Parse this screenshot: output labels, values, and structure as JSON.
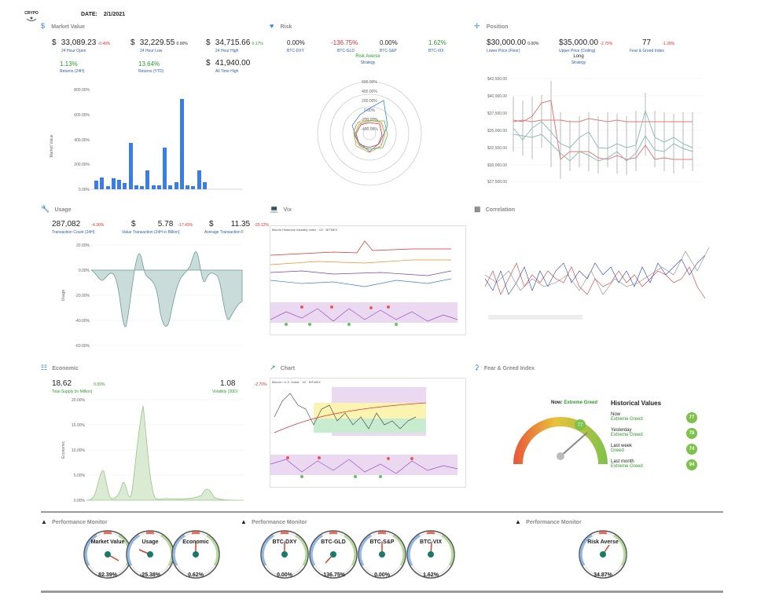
{
  "header": {
    "logo_text": "CRYPO",
    "date_label": "DATE:",
    "date_value": "2/1/2021"
  },
  "market_value": {
    "title": "Market Value",
    "stats": [
      {
        "prefix": "$",
        "value": "33,089.23",
        "change": "-0.49%",
        "label": "24 Hour Open",
        "color": "#d93030"
      },
      {
        "prefix": "$",
        "value": "32,229.55",
        "change": "0.00%",
        "label": "24 Hour Low",
        "color": "#222222"
      },
      {
        "prefix": "$",
        "value": "34,715.66",
        "change": "6.17%",
        "label": "24 Hour High",
        "color": "#2d9a2d"
      }
    ],
    "stats2": [
      {
        "value": "1.13%",
        "label": "Returns (24H)"
      },
      {
        "value": "13.64%",
        "label": "Returns (YTD)"
      },
      {
        "prefix": "$",
        "value": "41,940.00",
        "label": "All Time High"
      }
    ],
    "ylabel": "Market Value",
    "yticks": [
      "800.00%",
      "600.00%",
      "400.00%",
      "200.00%",
      "0.00%"
    ]
  },
  "risk": {
    "title": "Risk",
    "stats": [
      {
        "value": "0.00%",
        "label": "BTC-DXY",
        "color": "#222222"
      },
      {
        "value": "-136.75%",
        "label": "BTC-GLD",
        "color": "#d93030"
      },
      {
        "value": "0.00%",
        "label": "BTC-S&P",
        "color": "#222222"
      },
      {
        "value": "1.62%",
        "label": "BTC-VIX",
        "color": "#2d9a2d"
      }
    ],
    "strategy_value": "Risk Averse",
    "strategy_label": "Strategy",
    "radar_ticks": [
      "600.00%",
      "400.00%",
      "200.00%",
      "0.00%",
      "-200.00%",
      "-400.00%"
    ]
  },
  "position": {
    "title": "Position",
    "stats": [
      {
        "prefix": "$",
        "value": "30,000.00",
        "change": "0.00%",
        "label": "Lower Price (Floor)",
        "color": "#222222"
      },
      {
        "prefix": "$",
        "value": "35,000.00",
        "change": "-2.79%",
        "label": "Upper Price (Ceiling)",
        "color": "#d93030"
      },
      {
        "prefix": "",
        "value": "77",
        "change": "-1.28%",
        "label": "Fear & Greed Index",
        "color": "#d93030"
      }
    ],
    "strategy_value": "Long",
    "strategy_label": "Strategy",
    "yticks": [
      "$42,500.00",
      "$40,000.00",
      "$37,500.00",
      "$35,000.00",
      "$32,500.00",
      "$30,000.00",
      "$27,500.00"
    ]
  },
  "usage": {
    "title": "Usage",
    "stats": [
      {
        "prefix": "",
        "value": "287,082",
        "change": "-4.30%",
        "label": "Transaction Count (24H)"
      },
      {
        "prefix": "$",
        "value": "5.78",
        "change": "-17.43%",
        "label": "Value Transaction (24H in Billion)"
      },
      {
        "prefix": "$",
        "value": "11.35",
        "change": "-20.12%",
        "label": "Average Transaction Fee"
      }
    ],
    "ylabel": "Usage",
    "yticks": [
      "20.00%",
      "0.00%",
      "-20.00%",
      "-40.00%",
      "-60.00%"
    ]
  },
  "vix": {
    "title": "Vix",
    "chart_caption": "Bitcoin Historical Volatility Index · 1D · BITMEX"
  },
  "correlation": {
    "title": "Correlation"
  },
  "economic": {
    "title": "Economic",
    "stats": [
      {
        "value": "18.62",
        "change": "0.00%",
        "label": "Total Supply (in Million)"
      },
      {
        "value": "1.08",
        "change": "-2.70%",
        "label": "Volatility (30D)"
      }
    ],
    "ylabel": "Economic",
    "yticks": [
      "20.00%",
      "15.00%",
      "10.00%",
      "5.00%",
      "0.00%"
    ]
  },
  "chart": {
    "title": "Chart",
    "chart_caption": "Bitcoin / U.S. Dollar · 1D · BITMEX"
  },
  "fear_greed": {
    "title": "Fear & Greed Index",
    "now_label": "Now:",
    "now_value": "Extreme Greed",
    "gauge_value": "77",
    "historical_title": "Historical Values",
    "history": [
      {
        "period": "Now",
        "sentiment": "Extreme Greed",
        "value": "77"
      },
      {
        "period": "Yesterday",
        "sentiment": "Extreme Greed",
        "value": "78"
      },
      {
        "period": "Last week",
        "sentiment": "Greed",
        "value": "74"
      },
      {
        "period": "Last month",
        "sentiment": "Extreme Greed",
        "value": "94"
      }
    ]
  },
  "performance": {
    "title": "Performance Monitor",
    "groups": [
      {
        "gauges": [
          {
            "label": "Market Value",
            "value": "82.39%"
          },
          {
            "label": "Usage",
            "value": "-25.38%"
          },
          {
            "label": "Economic",
            "value": "0.62%"
          }
        ]
      },
      {
        "gauges": [
          {
            "label": "BTC-DXY",
            "value": "0.00%"
          },
          {
            "label": "BTC-GLD",
            "value": "-136.75%"
          },
          {
            "label": "BTC-S&P",
            "value": "0.00%"
          },
          {
            "label": "BTC-VIX",
            "value": "1.62%"
          }
        ]
      },
      {
        "gauges": [
          {
            "label": "Risk Averse",
            "value": "34.87%"
          }
        ]
      }
    ]
  },
  "colors": {
    "bar": "#3b7de8",
    "green_badge": "#7dc24a",
    "rule": "#9a9a9a"
  }
}
